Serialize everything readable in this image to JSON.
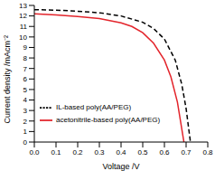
{
  "chart_data": {
    "type": "line",
    "xlabel": "Voltage /V",
    "ylabel": "Current density /mAcm⁻²",
    "xlim": [
      0,
      0.8
    ],
    "xticks": [
      {
        "value": 0,
        "label": "0.0"
      },
      0.1,
      0.2,
      0.3,
      0.4,
      0.5,
      0.6,
      0.7,
      0.8
    ],
    "ylim": [
      0,
      13
    ],
    "yticks": [
      0,
      1,
      2,
      3,
      4,
      5,
      6,
      7,
      8,
      9,
      10,
      11,
      12,
      13
    ],
    "grid": false,
    "legend": "lower left",
    "series": [
      {
        "name": "IL-based poly(AA/PEG)",
        "color": "#000000",
        "line_style": "dashed",
        "x": [
          0,
          0.1,
          0.2,
          0.3,
          0.4,
          0.5,
          0.55,
          0.6,
          0.65,
          0.68,
          0.7,
          0.72
        ],
        "values": [
          12.6,
          12.55,
          12.45,
          12.3,
          12.0,
          11.4,
          10.8,
          9.8,
          7.8,
          5.5,
          3.2,
          0
        ]
      },
      {
        "name": "acetonitrile-based poly(AA/PEG)",
        "color": "#e3242b",
        "line_style": "solid",
        "x": [
          0,
          0.1,
          0.2,
          0.3,
          0.4,
          0.45,
          0.5,
          0.55,
          0.6,
          0.63,
          0.66,
          0.69
        ],
        "values": [
          12.2,
          12.1,
          11.95,
          11.75,
          11.35,
          11.0,
          10.4,
          9.4,
          7.8,
          6.2,
          3.8,
          0
        ]
      }
    ]
  }
}
